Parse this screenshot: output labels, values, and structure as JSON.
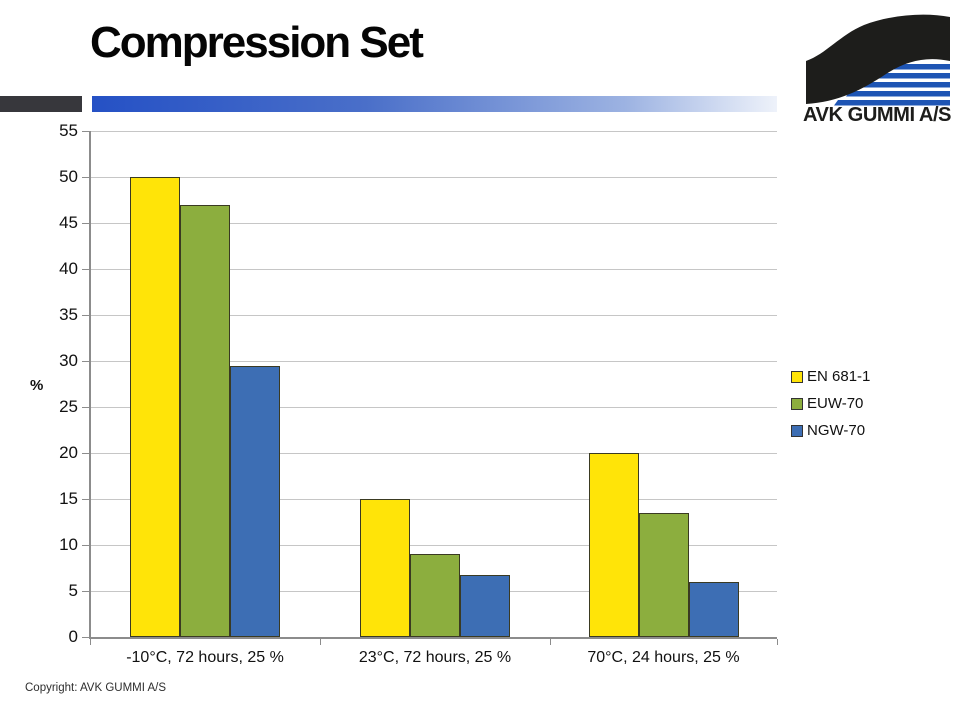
{
  "title": "Compression Set",
  "logo": {
    "text": "AVK GUMMI A/S"
  },
  "copyright": "Copyright: AVK GUMMI A/S",
  "colors": {
    "header_dark_bar": "#37373c",
    "header_gradient_start": "#2551c5",
    "header_gradient_mid": "#4a6fc9",
    "header_gradient_late": "#9db3e2",
    "header_gradient_end": "#eef2fa",
    "grid_line": "#c6c6c6",
    "axis_line": "#8c8c8c",
    "bar_border": "#3a3a22",
    "text": "#111111",
    "logo_black": "#1d1d1b",
    "logo_blue": "#1e55b4"
  },
  "chart_data": {
    "type": "bar",
    "title": "",
    "xlabel": "",
    "ylabel": "%",
    "ylim": [
      0,
      55
    ],
    "ytick_step": 5,
    "yticks": [
      0,
      5,
      10,
      15,
      20,
      25,
      30,
      35,
      40,
      45,
      50,
      55
    ],
    "grid": true,
    "legend_position": "right",
    "categories": [
      "-10°C, 72 hours, 25 %",
      "23°C, 72 hours, 25 %",
      "70°C, 24 hours, 25 %"
    ],
    "series": [
      {
        "name": "EN 681-1",
        "color": "#ffe408",
        "values": [
          50,
          15,
          20
        ]
      },
      {
        "name": "EUW-70",
        "color": "#8cae3e",
        "values": [
          47,
          9,
          13.5
        ]
      },
      {
        "name": "NGW-70",
        "color": "#3d6eb4",
        "values": [
          29.5,
          6.7,
          6
        ]
      }
    ]
  }
}
